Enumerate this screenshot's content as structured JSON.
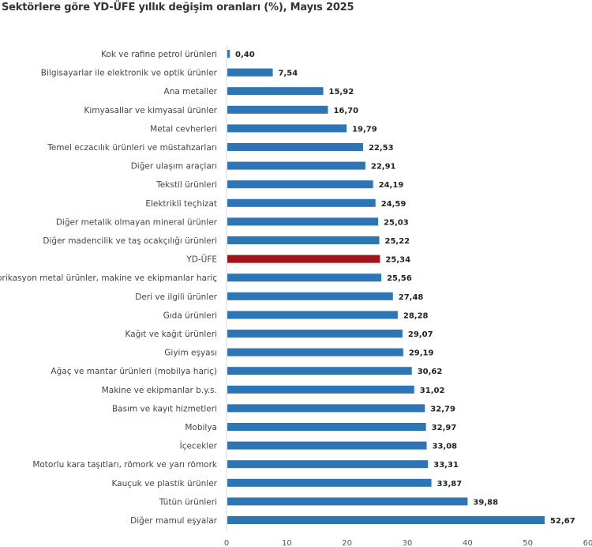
{
  "chart_data": {
    "type": "bar",
    "orientation": "horizontal",
    "title": "Sektörlere göre YD-ÜFE yıllık değişim oranları (%), Mayıs 2025",
    "xlabel": "",
    "ylabel": "",
    "xlim": [
      0,
      60
    ],
    "xticks": [
      0,
      10,
      20,
      30,
      40,
      50,
      60
    ],
    "grid": false,
    "colors": {
      "default": "#2e75b6",
      "highlight": "#a6121c"
    },
    "highlight_category": "YD-ÜFE",
    "categories": [
      "Kok ve rafine petrol ürünleri",
      "Bilgisayarlar ile elektronik ve optik ürünler",
      "Ana metaller",
      "Kimyasallar ve kimyasal ürünler",
      "Metal cevherleri",
      "Temel eczacılık ürünleri ve müstahzarları",
      "Diğer ulaşım araçları",
      "Tekstil ürünleri",
      "Elektrikli teçhizat",
      "Diğer metalik olmayan mineral ürünler",
      "Diğer madencilik ve taş ocakçılığı ürünleri",
      "YD-ÜFE",
      "Fabrikasyon metal ürünler, makine ve ekipmanlar hariç",
      "Deri ve ilgili ürünler",
      "Gıda ürünleri",
      "Kağıt ve kağıt ürünleri",
      "Giyim eşyası",
      "Ağaç ve mantar ürünleri (mobilya hariç)",
      "Makine ve ekipmanlar b.y.s.",
      "Basım ve kayıt hizmetleri",
      "Mobilya",
      "İçecekler",
      "Motorlu kara taşıtları, römork ve yarı römork",
      "Kauçuk ve plastik ürünler",
      "Tütün ürünleri",
      "Diğer mamul eşyalar"
    ],
    "values": [
      0.4,
      7.54,
      15.92,
      16.7,
      19.79,
      22.53,
      22.91,
      24.19,
      24.59,
      25.03,
      25.22,
      25.34,
      25.56,
      27.48,
      28.28,
      29.07,
      29.19,
      30.62,
      31.02,
      32.79,
      32.97,
      33.08,
      33.31,
      33.87,
      39.88,
      52.67
    ],
    "value_labels": [
      "0,40",
      "7,54",
      "15,92",
      "16,70",
      "19,79",
      "22,53",
      "22,91",
      "24,19",
      "24,59",
      "25,03",
      "25,22",
      "25,34",
      "25,56",
      "27,48",
      "28,28",
      "29,07",
      "29,19",
      "30,62",
      "31,02",
      "32,79",
      "32,97",
      "33,08",
      "33,31",
      "33,87",
      "39,88",
      "52,67"
    ]
  }
}
